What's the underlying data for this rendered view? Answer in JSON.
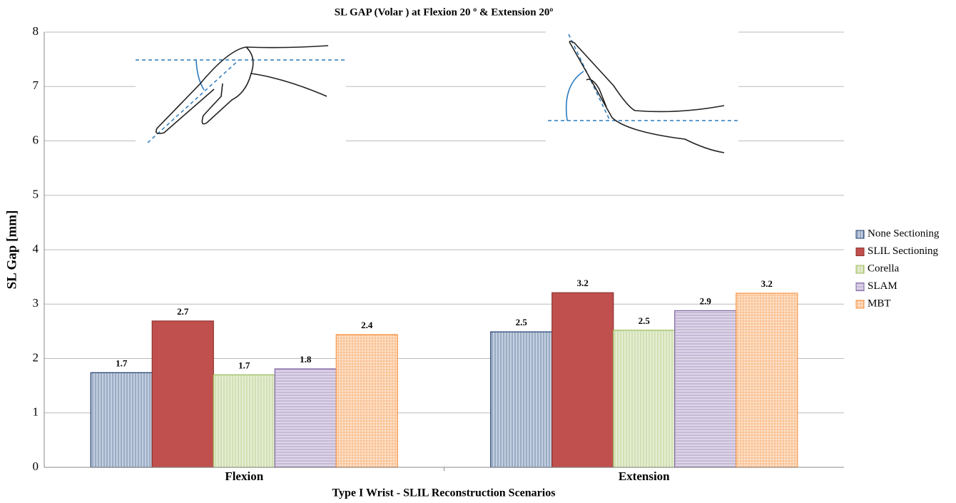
{
  "chart_data": {
    "type": "bar",
    "title": "SL GAP (Volar ) at Flexion 20 º & Extension 20º",
    "x_label": "Type I Wrist - SLIL Reconstruction Scenarios",
    "y_label": "SL Gap [mm]",
    "categories": [
      "Flexion",
      "Extension"
    ],
    "series": [
      {
        "name": "None Sectioning",
        "color": "#1f3a6e",
        "fill_color": "#c3d0e0",
        "hatch": "vertical",
        "values": [
          1.74,
          2.49
        ],
        "value_labels": [
          "1.7",
          "2.5"
        ]
      },
      {
        "name": "SLIL Sectioning",
        "color": "#8e3230",
        "fill_color": "#c0504d",
        "hatch": "none",
        "values": [
          2.69,
          3.21
        ],
        "value_labels": [
          "2.7",
          "3.2"
        ]
      },
      {
        "name": "Corella",
        "color": "#9bbb59",
        "fill_color": "#e4edd2",
        "hatch": "vertical",
        "values": [
          1.7,
          2.52
        ],
        "value_labels": [
          "1.7",
          "2.5"
        ]
      },
      {
        "name": "SLAM",
        "color": "#8064a2",
        "fill_color": "#ddd5e8",
        "hatch": "horizontal",
        "values": [
          1.81,
          2.88
        ],
        "value_labels": [
          "1.8",
          "2.9"
        ]
      },
      {
        "name": "MBT",
        "color": "#f79646",
        "fill_color": "#fde3cd",
        "hatch": "cross",
        "values": [
          2.44,
          3.2
        ],
        "value_labels": [
          "2.4",
          "3.2"
        ]
      }
    ],
    "ylim": [
      0,
      8
    ],
    "yticks": [
      0,
      1,
      2,
      3,
      4,
      5,
      6,
      7,
      8
    ],
    "grid": true,
    "legend": "right"
  }
}
